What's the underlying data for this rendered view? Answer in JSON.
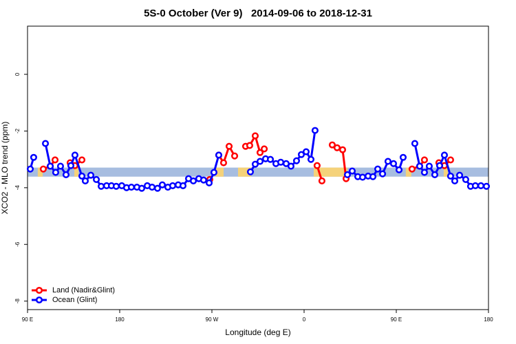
{
  "chart_data": {
    "type": "line",
    "title": "5S-0 October (Ver 9)   2014-09-06 to 2018-12-31",
    "x_label": "Longitude (deg E)",
    "y_label": "XCO2 - MLO trend (ppm)",
    "xlim": [
      90,
      540
    ],
    "ylim": [
      -8.3,
      1.7
    ],
    "xticks": [
      {
        "value": 90,
        "label": "90 E"
      },
      {
        "value": 180,
        "label": "180"
      },
      {
        "value": 270,
        "label": "90 W"
      },
      {
        "value": 360,
        "label": "0"
      },
      {
        "value": 450,
        "label": "90 E"
      },
      {
        "value": 540,
        "label": "180"
      }
    ],
    "yticks": [
      0,
      -2,
      -4,
      -6,
      -8
    ],
    "legend": "bottom-left",
    "band": {
      "range": [
        -3.61,
        -3.29
      ],
      "color": "#a7bde0",
      "highlight_color": "#f5d27a",
      "highlights": [
        [
          100,
          104.8
        ],
        [
          135.7,
          139.7
        ],
        [
          273.3,
          281.4
        ],
        [
          295.5,
          308.2
        ],
        [
          369.4,
          402.3
        ],
        [
          459.3,
          464.7
        ],
        [
          496.3,
          500.3
        ]
      ]
    },
    "series": [
      {
        "name": "Land (Nadir&Glint)",
        "color": "#ff0000",
        "x": [
          105.4,
          112.2,
          116.9,
          null,
          131.6,
          136.3,
          143.1,
          null,
          267.9,
          null,
          276.7,
          281.4,
          286.8,
          292.2,
          null,
          302.9,
          306.9,
          312.3,
          317.0,
          321.1,
          null,
          372.7,
          377.4,
          null,
          387.5,
          392.2,
          397.6,
          401.0,
          null,
          465.4,
          472.8,
          477.5,
          null,
          491.6,
          497.0,
          503.0
        ],
        "values": [
          -3.34,
          -3.24,
          -3.02,
          null,
          -3.12,
          -3.22,
          -3.02,
          null,
          -3.71,
          null,
          -2.85,
          -3.12,
          -2.54,
          -2.88,
          null,
          -2.54,
          -2.51,
          -2.17,
          -2.76,
          -2.63,
          null,
          -3.22,
          -3.76,
          null,
          -2.49,
          -2.59,
          -2.66,
          -3.68,
          null,
          -3.34,
          -3.24,
          -3.02,
          null,
          -3.12,
          -3.22,
          -3.02
        ]
      },
      {
        "name": "Ocean (Glint)",
        "color": "#0000ff",
        "x": [
          92.7,
          96.0,
          null,
          107.5,
          112.2,
          117.5,
          122.2,
          127.6,
          132.3,
          136.3,
          143.1,
          146.4,
          151.8,
          157.2,
          161.9,
          167.2,
          171.9,
          176.6,
          182.0,
          186.7,
          191.4,
          196.8,
          201.5,
          206.9,
          211.6,
          216.9,
          221.6,
          227.0,
          231.7,
          237.1,
          241.8,
          247.2,
          251.9,
          257.2,
          261.9,
          267.3,
          272.0,
          276.7,
          null,
          307.6,
          312.3,
          317.0,
          322.4,
          327.1,
          332.5,
          337.2,
          342.5,
          347.2,
          352.6,
          357.3,
          362.0,
          366.7,
          370.7,
          null,
          402.3,
          407.0,
          412.4,
          417.1,
          422.5,
          427.2,
          431.9,
          436.6,
          441.9,
          447.3,
          452.7,
          456.7,
          null,
          468.1,
          472.8,
          477.5,
          482.2,
          487.6,
          492.3,
          497.0,
          503.0,
          507.1,
          511.8,
          517.8,
          522.5,
          527.2,
          532.6,
          538.0
        ],
        "values": [
          -3.34,
          -2.93,
          null,
          -2.44,
          -3.24,
          -3.46,
          -3.24,
          -3.54,
          -3.22,
          -2.85,
          -3.59,
          -3.76,
          -3.56,
          -3.71,
          -3.95,
          -3.93,
          -3.93,
          -3.95,
          -3.93,
          -4.0,
          -3.98,
          -3.98,
          -4.02,
          -3.93,
          -3.98,
          -4.02,
          -3.9,
          -3.98,
          -3.93,
          -3.9,
          -3.93,
          -3.68,
          -3.76,
          -3.68,
          -3.73,
          -3.83,
          -3.46,
          -2.85,
          null,
          -3.44,
          -3.17,
          -3.07,
          -2.98,
          -3.0,
          -3.15,
          -3.1,
          -3.15,
          -3.24,
          -3.05,
          -2.83,
          -2.73,
          -3.0,
          -1.98,
          null,
          -3.54,
          -3.41,
          -3.61,
          -3.63,
          -3.59,
          -3.61,
          -3.34,
          -3.51,
          -3.07,
          -3.15,
          -3.37,
          -2.93,
          null,
          -2.44,
          -3.24,
          -3.46,
          -3.24,
          -3.54,
          -3.22,
          -2.85,
          -3.59,
          -3.76,
          -3.56,
          -3.71,
          -3.95,
          -3.93,
          -3.93,
          -3.95
        ]
      }
    ]
  }
}
